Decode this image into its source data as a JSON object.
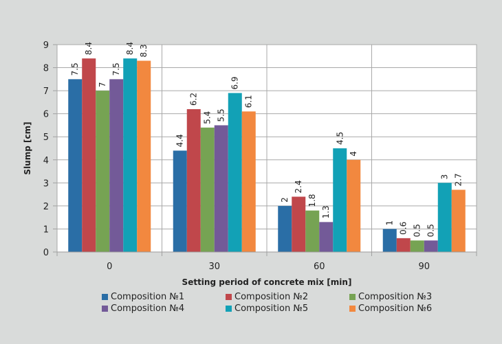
{
  "chart_data": {
    "type": "bar",
    "title": "",
    "xlabel": "Setting period of concrete mix [min]",
    "ylabel": "Slump [cm]",
    "ylim": [
      0,
      9
    ],
    "yticks": [
      "0",
      "1",
      "2",
      "3",
      "4",
      "5",
      "6",
      "7",
      "8",
      "9"
    ],
    "grid": true,
    "legend_position": "bottom",
    "categories": [
      "0",
      "30",
      "60",
      "90"
    ],
    "series": [
      {
        "name": "Composition №1",
        "color": "#2a6ea6",
        "values": [
          7.5,
          4.4,
          2,
          1
        ],
        "labels": [
          "7.5",
          "4.4",
          "2",
          "1"
        ]
      },
      {
        "name": "Composition №2",
        "color": "#c0474b",
        "values": [
          8.4,
          6.2,
          2.4,
          0.6
        ],
        "labels": [
          "8.4",
          "6.2",
          "2.4",
          "0.6"
        ]
      },
      {
        "name": "Composition №3",
        "color": "#76a353",
        "values": [
          7,
          5.4,
          1.8,
          0.5
        ],
        "labels": [
          "7",
          "5.4",
          "1.8",
          "0.5"
        ]
      },
      {
        "name": "Composition №4",
        "color": "#735a98",
        "values": [
          7.5,
          5.5,
          1.3,
          0.5
        ],
        "labels": [
          "7.5",
          "5.5",
          "1.3",
          "0.5"
        ]
      },
      {
        "name": "Composition №5",
        "color": "#12a1b6",
        "values": [
          8.4,
          6.9,
          4.5,
          3
        ],
        "labels": [
          "8.4",
          "6.9",
          "4.5",
          "3"
        ]
      },
      {
        "name": "Composition №6",
        "color": "#f2883f",
        "values": [
          8.3,
          6.1,
          4,
          2.7
        ],
        "labels": [
          "8.3",
          "6.1",
          "4",
          "2.7"
        ]
      }
    ]
  }
}
